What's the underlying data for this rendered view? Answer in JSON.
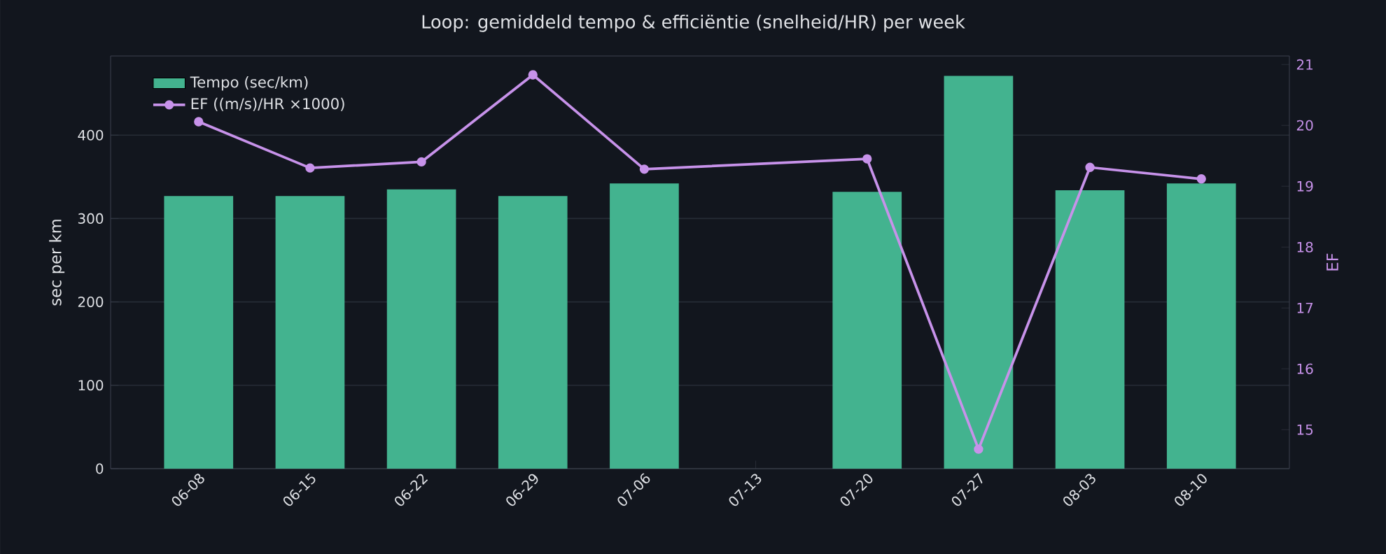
{
  "chart_data": {
    "type": "bar",
    "title": "Loop: gemiddeld tempo & efficiëntie (snelheid/HR) per week",
    "categories": [
      "06-08",
      "06-15",
      "06-22",
      "06-29",
      "07-06",
      "07-13",
      "07-20",
      "07-27",
      "08-03",
      "08-10"
    ],
    "ylabel": "sec per km",
    "y2label": "EF",
    "ylim": [
      0,
      495
    ],
    "yticks": [
      0,
      100,
      200,
      300,
      400
    ],
    "y2lim": [
      14.36,
      21.14
    ],
    "y2ticks": [
      15,
      16,
      17,
      18,
      19,
      20,
      21
    ],
    "grid": "y",
    "legend": "top left",
    "series": [
      {
        "name": "Tempo (sec/km)",
        "color": "#43b38f",
        "values": [
          327,
          327,
          335,
          327,
          342,
          null,
          332,
          471,
          334,
          342
        ]
      },
      {
        "name": "EF ((m/s)/HR ×1000)",
        "type": "line",
        "axis": "y2",
        "color": "#c792ea",
        "marker": "circle",
        "values": [
          20.06,
          19.3,
          19.4,
          20.83,
          19.28,
          null,
          19.45,
          14.68,
          19.31,
          19.12
        ]
      }
    ]
  }
}
